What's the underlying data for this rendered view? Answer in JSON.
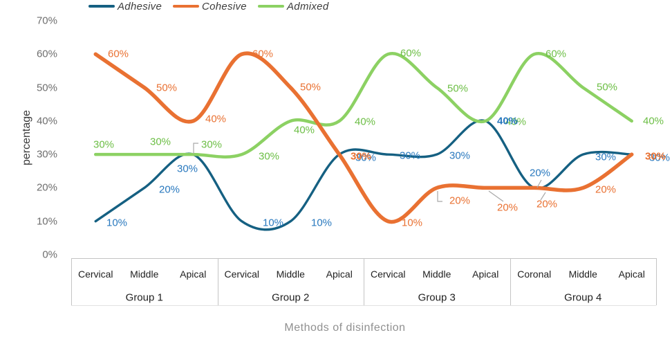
{
  "chart_data": {
    "type": "line",
    "smooth": true,
    "title": "",
    "xlabel": "Methods of disinfection",
    "ylabel": "percentage",
    "ylim": [
      0,
      70
    ],
    "y_ticks": [
      "0%",
      "10%",
      "20%",
      "30%",
      "40%",
      "50%",
      "60%",
      "70%"
    ],
    "legend_position": "top",
    "grid": false,
    "groups": [
      {
        "label": "Group 1",
        "positions": [
          "Cervical",
          "Middle",
          "Apical"
        ]
      },
      {
        "label": "Group 2",
        "positions": [
          "Cervical",
          "Middle",
          "Apical"
        ]
      },
      {
        "label": "Group 3",
        "positions": [
          "Cervical",
          "Middle",
          "Apical"
        ]
      },
      {
        "label": "Group 4",
        "positions": [
          "Coronal",
          "Middle",
          "Apical"
        ]
      }
    ],
    "series": [
      {
        "name": "Adhesive",
        "color": "#156082",
        "label_color": "#2878BE",
        "values": [
          10,
          20,
          30,
          10,
          10,
          30,
          30,
          30,
          40,
          20,
          30,
          30
        ]
      },
      {
        "name": "Cohesive",
        "color": "#E97132",
        "label_color": "#E97132",
        "values": [
          60,
          50,
          40,
          60,
          50,
          30,
          10,
          20,
          20,
          20,
          20,
          30
        ]
      },
      {
        "name": "Admixed",
        "color": "#8CD163",
        "label_color": "#6CBE45",
        "values": [
          30,
          30,
          30,
          30,
          40,
          40,
          60,
          50,
          40,
          60,
          50,
          40
        ]
      }
    ],
    "data_labels": true,
    "label_suffix": "%"
  }
}
